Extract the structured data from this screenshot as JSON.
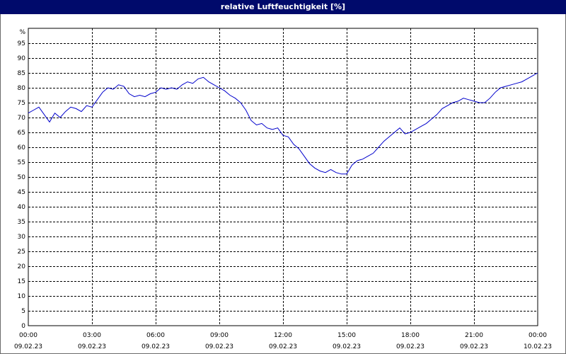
{
  "window": {
    "title": "relative Luftfeuchtigkeit [%]"
  },
  "colors": {
    "titlebar": "#000a6b",
    "line": "#0000cc",
    "grid": "#000000",
    "background": "#ffffff"
  },
  "chart_data": {
    "type": "line",
    "title": "relative Luftfeuchtigkeit [%]",
    "ylabel": "%",
    "xlabel": "",
    "ylim": [
      0,
      100
    ],
    "yticks": [
      0,
      5,
      10,
      15,
      20,
      25,
      30,
      35,
      40,
      45,
      50,
      55,
      60,
      65,
      70,
      75,
      80,
      85,
      90,
      95
    ],
    "xlim": [
      "09.02.23 00:00",
      "10.02.23 00:00"
    ],
    "x_ticks": [
      {
        "time": "00:00",
        "date": "09.02.23"
      },
      {
        "time": "03:00",
        "date": "09.02.23"
      },
      {
        "time": "06:00",
        "date": "09.02.23"
      },
      {
        "time": "09:00",
        "date": "09.02.23"
      },
      {
        "time": "12:00",
        "date": "09.02.23"
      },
      {
        "time": "15:00",
        "date": "09.02.23"
      },
      {
        "time": "18:00",
        "date": "09.02.23"
      },
      {
        "time": "21:00",
        "date": "09.02.23"
      },
      {
        "time": "00:00",
        "date": "10.02.23"
      }
    ],
    "grid": true,
    "series": [
      {
        "x": [
          "09.02.23 00:00",
          "09.02.23 00:15",
          "09.02.23 00:30",
          "09.02.23 00:45",
          "09.02.23 01:00",
          "09.02.23 01:15",
          "09.02.23 01:30",
          "09.02.23 01:45",
          "09.02.23 02:00",
          "09.02.23 02:15",
          "09.02.23 02:30",
          "09.02.23 02:45",
          "09.02.23 03:00",
          "09.02.23 03:15",
          "09.02.23 03:30",
          "09.02.23 03:45",
          "09.02.23 04:00",
          "09.02.23 04:15",
          "09.02.23 04:30",
          "09.02.23 04:45",
          "09.02.23 05:00",
          "09.02.23 05:15",
          "09.02.23 05:30",
          "09.02.23 05:45",
          "09.02.23 06:00",
          "09.02.23 06:15",
          "09.02.23 06:30",
          "09.02.23 06:45",
          "09.02.23 07:00",
          "09.02.23 07:15",
          "09.02.23 07:30",
          "09.02.23 07:45",
          "09.02.23 08:00",
          "09.02.23 08:15",
          "09.02.23 08:30",
          "09.02.23 08:45",
          "09.02.23 09:00",
          "09.02.23 09:15",
          "09.02.23 09:30",
          "09.02.23 09:45",
          "09.02.23 10:00",
          "09.02.23 10:15",
          "09.02.23 10:30",
          "09.02.23 10:45",
          "09.02.23 11:00",
          "09.02.23 11:15",
          "09.02.23 11:30",
          "09.02.23 11:45",
          "09.02.23 12:00",
          "09.02.23 12:15",
          "09.02.23 12:30",
          "09.02.23 12:45",
          "09.02.23 13:00",
          "09.02.23 13:15",
          "09.02.23 13:30",
          "09.02.23 13:45",
          "09.02.23 14:00",
          "09.02.23 14:15",
          "09.02.23 14:30",
          "09.02.23 14:45",
          "09.02.23 15:00",
          "09.02.23 15:15",
          "09.02.23 15:30",
          "09.02.23 15:45",
          "09.02.23 16:00",
          "09.02.23 16:15",
          "09.02.23 16:30",
          "09.02.23 16:45",
          "09.02.23 17:00",
          "09.02.23 17:15",
          "09.02.23 17:30",
          "09.02.23 17:45",
          "09.02.23 18:00",
          "09.02.23 18:15",
          "09.02.23 18:30",
          "09.02.23 18:45",
          "09.02.23 19:00",
          "09.02.23 19:15",
          "09.02.23 19:30",
          "09.02.23 19:45",
          "09.02.23 20:00",
          "09.02.23 20:15",
          "09.02.23 20:30",
          "09.02.23 20:45",
          "09.02.23 21:00",
          "09.02.23 21:15",
          "09.02.23 21:30",
          "09.02.23 21:45",
          "09.02.23 22:00",
          "09.02.23 22:15",
          "09.02.23 22:30",
          "09.02.23 22:45",
          "09.02.23 23:00",
          "09.02.23 23:15",
          "09.02.23 23:30",
          "09.02.23 23:45",
          "10.02.23 00:00"
        ],
        "values": [
          71.5,
          72.5,
          73.5,
          71.0,
          68.5,
          71.5,
          70.0,
          72.0,
          73.5,
          73.0,
          72.0,
          74.0,
          73.5,
          76.0,
          78.5,
          80.0,
          79.5,
          81.0,
          80.5,
          78.0,
          77.0,
          77.5,
          77.0,
          78.0,
          78.5,
          80.0,
          79.5,
          80.0,
          79.5,
          81.0,
          82.0,
          81.5,
          83.0,
          83.5,
          82.0,
          81.0,
          80.0,
          79.0,
          77.5,
          76.5,
          75.0,
          72.5,
          69.0,
          67.5,
          68.0,
          66.5,
          66.0,
          66.5,
          64.0,
          63.5,
          61.0,
          59.5,
          57.0,
          54.5,
          53.0,
          52.0,
          51.5,
          52.5,
          51.5,
          51.0,
          51.0,
          54.0,
          55.5,
          56.0,
          57.0,
          58.0,
          60.0,
          62.0,
          63.5,
          65.0,
          66.5,
          64.5,
          65.0,
          66.0,
          67.0,
          68.0,
          69.5,
          71.0,
          73.0,
          74.0,
          75.0,
          75.5,
          76.5,
          76.0,
          75.5,
          75.0,
          75.0,
          76.5,
          78.5,
          80.0,
          80.5,
          81.0,
          81.5,
          82.0,
          83.0,
          84.0,
          85.0
        ]
      }
    ]
  }
}
